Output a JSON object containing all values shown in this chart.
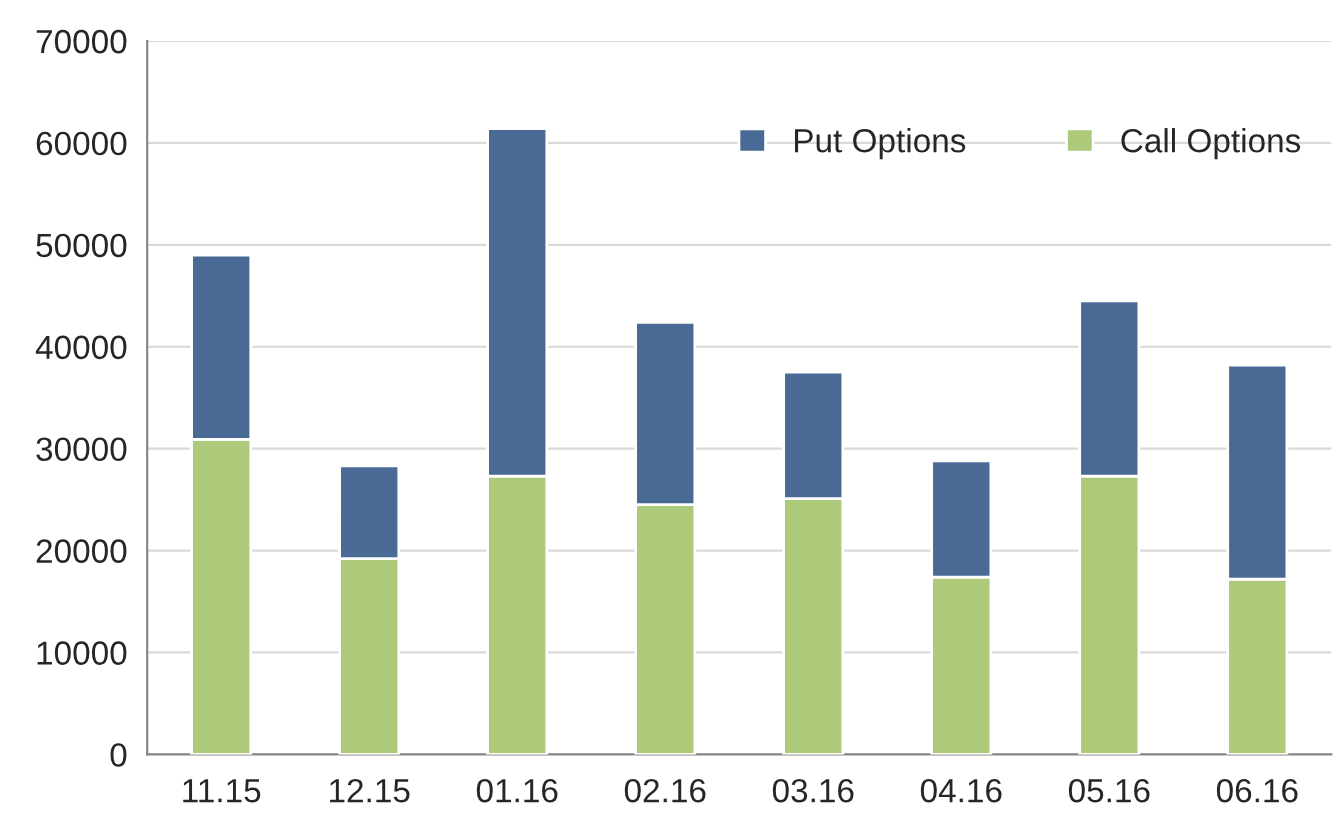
{
  "chart_data": {
    "type": "bar",
    "stacked": true,
    "categories": [
      "11.15",
      "12.15",
      "01.16",
      "02.16",
      "03.16",
      "04.16",
      "05.16",
      "06.16"
    ],
    "series": [
      {
        "name": "Call Options",
        "color": "#adc97a",
        "values": [
          30900,
          19200,
          27300,
          24500,
          25100,
          17400,
          27300,
          17200
        ]
      },
      {
        "name": "Put Options",
        "color": "#4a6a96",
        "values": [
          18100,
          9100,
          34100,
          17900,
          12400,
          11400,
          17200,
          21000
        ]
      }
    ],
    "ylim": [
      0,
      70000
    ],
    "yticks": [
      0,
      10000,
      20000,
      30000,
      40000,
      50000,
      60000,
      70000
    ],
    "grid": "y",
    "legend": "top right"
  }
}
